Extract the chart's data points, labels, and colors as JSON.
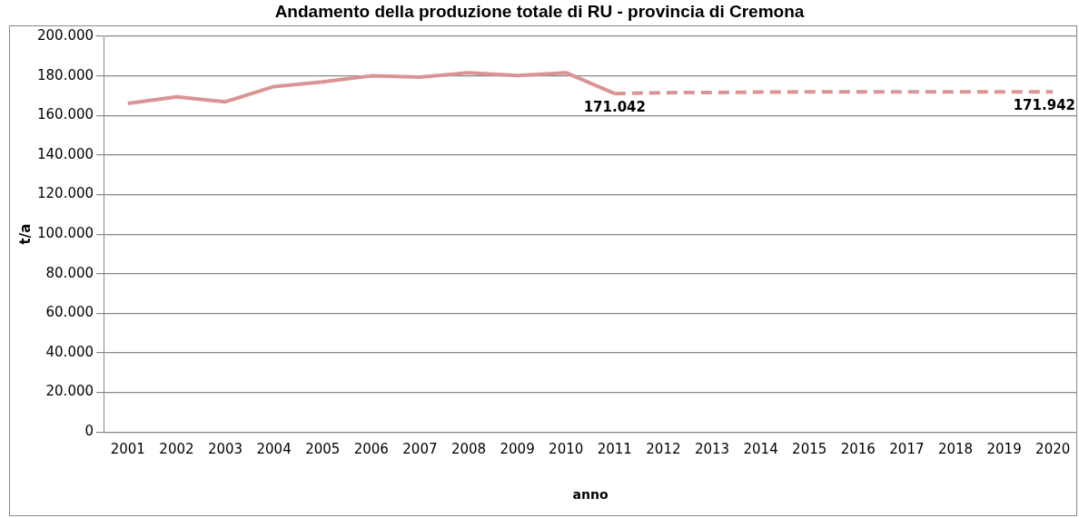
{
  "chart_data": {
    "type": "line",
    "title": "Andamento della produzione totale di RU - provincia di Cremona",
    "xlabel": "anno",
    "ylabel": "t/a",
    "categories": [
      "2001",
      "2002",
      "2003",
      "2004",
      "2005",
      "2006",
      "2007",
      "2008",
      "2009",
      "2010",
      "2011",
      "2012",
      "2013",
      "2014",
      "2015",
      "2016",
      "2017",
      "2018",
      "2019",
      "2020"
    ],
    "series": [
      {
        "color": "#d99594",
        "line_style": "solid",
        "values": [
          166100,
          169400,
          166900,
          174600,
          177000,
          180000,
          179400,
          181600,
          180200,
          181600,
          171042,
          null,
          null,
          null,
          null,
          null,
          null,
          null,
          null,
          null
        ]
      },
      {
        "color": "#d99594",
        "line_style": "dashed",
        "values": [
          null,
          null,
          null,
          null,
          null,
          null,
          null,
          null,
          null,
          null,
          171042,
          171500,
          171600,
          171800,
          171900,
          171900,
          171900,
          171900,
          171900,
          171942
        ],
        "value_labels": [
          null,
          null,
          null,
          null,
          null,
          null,
          null,
          null,
          null,
          null,
          "171.042",
          null,
          null,
          null,
          null,
          null,
          null,
          null,
          null,
          "171.942"
        ]
      }
    ],
    "ylim": [
      0,
      200000
    ],
    "yticks": [
      0,
      {
        "value": 20000,
        "label": "20.000"
      },
      {
        "value": 40000,
        "label": "40.000"
      },
      {
        "value": 60000,
        "label": "60.000"
      },
      {
        "value": 80000,
        "label": "80.000"
      },
      {
        "value": 100000,
        "label": "100.000"
      },
      {
        "value": 120000,
        "label": "120.000"
      },
      {
        "value": 140000,
        "label": "140.000"
      },
      {
        "value": 160000,
        "label": "160.000"
      },
      {
        "value": 180000,
        "label": "180.000"
      },
      {
        "value": 200000,
        "label": "200.000"
      }
    ],
    "grid": "y",
    "marker": "none"
  }
}
